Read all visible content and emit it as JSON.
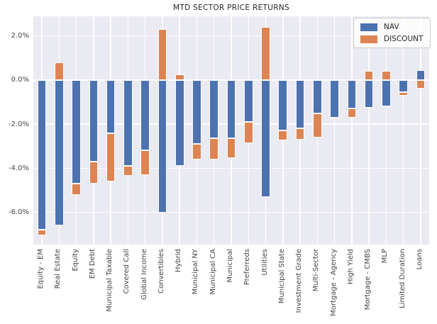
{
  "title": "MTD SECTOR PRICE RETURNS",
  "colors": {
    "nav": "#4c72b0",
    "discount": "#dd8452",
    "plot_background": "#eaeaf2",
    "gridline": "#ffffff",
    "figure_background": "#ffffff",
    "text": "#262626"
  },
  "legend": {
    "position": "upper right",
    "items": [
      {
        "label": "NAV",
        "color": "#4c72b0"
      },
      {
        "label": "DISCOUNT",
        "color": "#dd8452"
      }
    ]
  },
  "chart_data": {
    "type": "bar",
    "stacked": true,
    "title": "MTD SECTOR PRICE RETURNS",
    "xlabel": "",
    "ylabel": "",
    "grid": true,
    "legend_position": "upper right",
    "categories": [
      "Equity - EM",
      "Real Estate",
      "Equity",
      "EM Debt",
      "Municipal Taxable",
      "Covered Call",
      "Global Income",
      "Convertibles",
      "Hybrid",
      "Municipal NY",
      "Municipal CA",
      "Municipal",
      "Preferreds",
      "Utilities",
      "Municipal State",
      "Investment Grade",
      "Multi-Sector",
      "Mortgage - Agency",
      "High Yield",
      "Mortgage - CMBS",
      "MLP",
      "Limited Duration",
      "Loans"
    ],
    "series": [
      {
        "name": "NAV",
        "color": "#4c72b0",
        "values": [
          -6.8,
          -6.6,
          -4.7,
          -3.7,
          -2.4,
          -3.9,
          -3.2,
          -6.0,
          -3.9,
          -2.9,
          -2.65,
          -2.65,
          -1.9,
          -5.3,
          -2.3,
          -2.2,
          -1.5,
          -1.7,
          -1.3,
          -1.25,
          -1.2,
          -0.55,
          0.45
        ]
      },
      {
        "name": "DISCOUNT",
        "color": "#dd8452",
        "values": [
          -0.25,
          0.8,
          -0.5,
          -1.0,
          -2.2,
          -0.45,
          -1.1,
          2.3,
          0.25,
          -0.7,
          -0.95,
          -0.9,
          -0.95,
          2.4,
          -0.45,
          -0.5,
          -1.1,
          -0.08,
          -0.4,
          0.4,
          0.4,
          -0.15,
          -0.4
        ]
      }
    ],
    "y_ticks": [
      2,
      0,
      -2,
      -4,
      -6
    ],
    "y_tick_labels": [
      "2.0%",
      "0.0%",
      "-2.0%",
      "-4.0%",
      "-6.0%"
    ],
    "ylim": [
      -7.46,
      2.89
    ]
  }
}
